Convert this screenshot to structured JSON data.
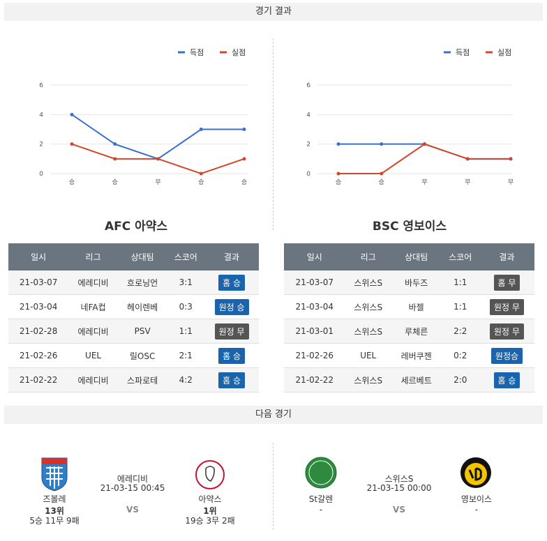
{
  "results": {
    "title": "경기 결과",
    "teams": [
      {
        "name": "AFC 아약스",
        "table": {
          "headers": [
            "일시",
            "리그",
            "상대팀",
            "스코어",
            "결과"
          ],
          "rows": [
            [
              "21-03-07",
              "에레디비",
              "흐로닝언",
              "3:1",
              "홈 승"
            ],
            [
              "21-03-04",
              "네FA컵",
              "헤이렌베",
              "0:3",
              "원정 승"
            ],
            [
              "21-02-28",
              "에레디비",
              "PSV",
              "1:1",
              "원정 무"
            ],
            [
              "21-02-26",
              "UEL",
              "릴OSC",
              "2:1",
              "홈 승"
            ],
            [
              "21-02-22",
              "에레디비",
              "스파로테",
              "4:2",
              "홈 승"
            ]
          ]
        }
      },
      {
        "name": "BSC 영보이스",
        "table": {
          "headers": [
            "일시",
            "리그",
            "상대팀",
            "스코어",
            "결과"
          ],
          "rows": [
            [
              "21-03-07",
              "스위스S",
              "바두즈",
              "1:1",
              "홈 무"
            ],
            [
              "21-03-04",
              "스위스S",
              "바젤",
              "1:1",
              "원정 무"
            ],
            [
              "21-03-01",
              "스위스S",
              "루체른",
              "2:2",
              "원정 무"
            ],
            [
              "21-02-26",
              "UEL",
              "레버쿠젠",
              "0:2",
              "원정승"
            ],
            [
              "21-02-22",
              "스위스S",
              "세르베트",
              "2:0",
              "홈 승"
            ]
          ]
        }
      }
    ]
  },
  "chart_data": [
    {
      "type": "line",
      "categories": [
        "승",
        "승",
        "무",
        "승",
        "승"
      ],
      "ylim": [
        0,
        6
      ],
      "yticks": [
        0,
        2,
        4,
        6
      ],
      "grid": true,
      "series": [
        {
          "name": "득점",
          "color": "#3a6fd0",
          "values": [
            4,
            2,
            1,
            3,
            3
          ]
        },
        {
          "name": "실점",
          "color": "#d2462c",
          "values": [
            2,
            1,
            1,
            0,
            1
          ]
        }
      ]
    },
    {
      "type": "line",
      "categories": [
        "승",
        "승",
        "무",
        "무",
        "무"
      ],
      "ylim": [
        0,
        6
      ],
      "yticks": [
        0,
        2,
        4,
        6
      ],
      "grid": true,
      "series": [
        {
          "name": "득점",
          "color": "#3a6fd0",
          "values": [
            2,
            2,
            2,
            1,
            1
          ]
        },
        {
          "name": "실점",
          "color": "#d2462c",
          "values": [
            0,
            0,
            2,
            1,
            1
          ]
        }
      ]
    }
  ],
  "next": {
    "title": "다음 경기",
    "matches": [
      {
        "league": "에레디비",
        "datetime": "21-03-15 00:45",
        "vs": "VS",
        "home": {
          "name": "즈볼레",
          "rank": "13위",
          "record": "5승 11무 9패"
        },
        "away": {
          "name": "아약스",
          "rank": "1위",
          "record": "19승 3무 2패"
        }
      },
      {
        "league": "스위스S",
        "datetime": "21-03-15 00:00",
        "vs": "VS",
        "home": {
          "name": "St갈렌",
          "rank": "-"
        },
        "away": {
          "name": "영보이스",
          "rank": "-"
        }
      }
    ]
  }
}
